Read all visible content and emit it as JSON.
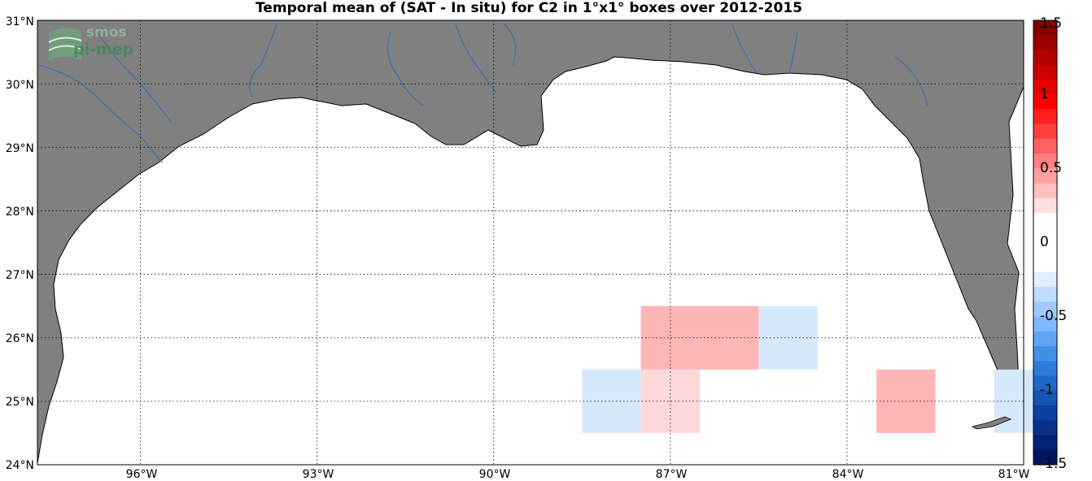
{
  "title": "Temporal mean of (SAT - In situ) for C2 in 1°x1° boxes over 2012-2015",
  "logo": {
    "line1": "smos",
    "line2": "pi-mep"
  },
  "axes": {
    "lat_labels": [
      "31°N",
      "30°N",
      "29°N",
      "28°N",
      "27°N",
      "26°N",
      "25°N",
      "24°N"
    ],
    "lon_labels": [
      "96°W",
      "93°W",
      "90°W",
      "87°W",
      "84°W",
      "81°W"
    ],
    "lat_range": [
      24,
      31
    ],
    "lon_range": [
      -97.75,
      -81
    ],
    "grid": "dotted"
  },
  "colorbar": {
    "labels": [
      "1.5",
      "1",
      "0.5",
      "0",
      "-0.5",
      "-1",
      "-1.5"
    ],
    "range": [
      -1.5,
      1.5
    ]
  },
  "colors": {
    "land": "#808080",
    "river": "#2a6fbf",
    "pos_strong": "#ffb5b5",
    "pos_light": "#ffd9d9",
    "neg_light": "#d6e8fb"
  },
  "chart_data": {
    "type": "heatmap",
    "title": "Temporal mean of (SAT - In situ) for C2 in 1°x1° boxes over 2012-2015",
    "cells": [
      {
        "lon": -87,
        "lat": 26,
        "value": 0.3
      },
      {
        "lon": -86,
        "lat": 26,
        "value": 0.3
      },
      {
        "lon": -85,
        "lat": 26,
        "value": -0.1
      },
      {
        "lon": -88,
        "lat": 25,
        "value": -0.1
      },
      {
        "lon": -87,
        "lat": 25,
        "value": 0.15
      },
      {
        "lon": -83,
        "lat": 25,
        "value": 0.3
      },
      {
        "lon": -81,
        "lat": 25,
        "value": -0.1
      }
    ]
  }
}
